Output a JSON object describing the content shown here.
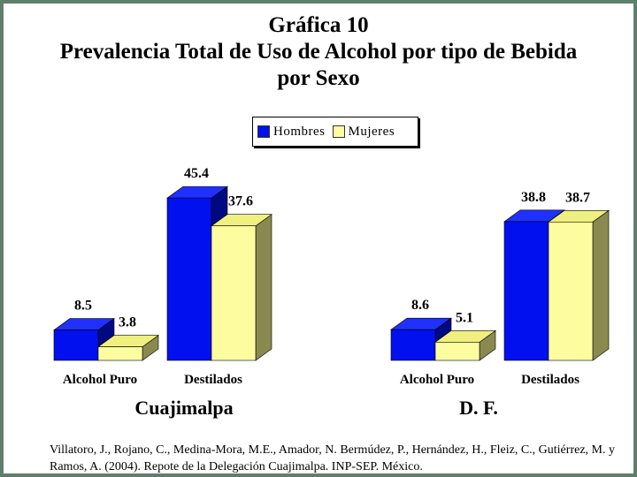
{
  "title": {
    "line1": "Gráfica 10",
    "line2": "Prevalencia Total de Uso de Alcohol por tipo de Bebida",
    "line3": "por Sexo"
  },
  "legend": [
    {
      "label": "Hombres",
      "color": "#0010ee"
    },
    {
      "label": "Mujeres",
      "color": "#fdfda0"
    }
  ],
  "chart_data": [
    {
      "type": "bar",
      "group_label": "Cuajimalpa",
      "categories": [
        "Alcohol Puro",
        "Destilados"
      ],
      "series": [
        {
          "name": "Hombres",
          "values": [
            8.5,
            45.4
          ]
        },
        {
          "name": "Mujeres",
          "values": [
            3.8,
            37.6
          ]
        }
      ],
      "ylim": [
        0,
        50
      ]
    },
    {
      "type": "bar",
      "group_label": "D. F.",
      "categories": [
        "Alcohol Puro",
        "Destilados"
      ],
      "series": [
        {
          "name": "Hombres",
          "values": [
            8.6,
            38.8
          ]
        },
        {
          "name": "Mujeres",
          "values": [
            5.1,
            38.7
          ]
        }
      ],
      "ylim": [
        0,
        50
      ]
    }
  ],
  "credit": "Villatoro, J., Rojano, C., Medina-Mora, M.E., Amador, N. Bermúdez, P., Hernández, H., Fleiz, C., Gutiérrez, M. y Ramos, A. (2004). Repote de la Delegación Cuajimalpa. INP-SEP. México."
}
